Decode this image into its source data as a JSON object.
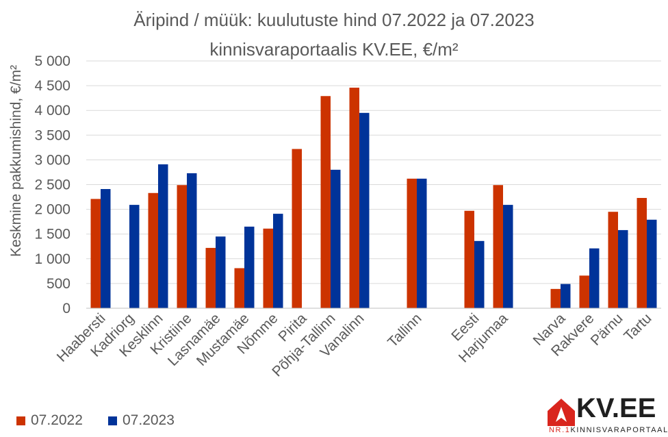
{
  "chart_data": {
    "type": "bar",
    "title": "Äripind / müük: kuulutuste hind 07.2022 ja 07.2023",
    "subtitle": "kinnisvaraportaalis KV.EE, €/m²",
    "ylabel": "Keskmine pakkumishind, €/m²",
    "xlabel": "",
    "ylim": [
      0,
      5000
    ],
    "yticks": [
      0,
      500,
      1000,
      1500,
      2000,
      2500,
      3000,
      3500,
      4000,
      4500,
      5000
    ],
    "ytick_labels": [
      "0",
      "500",
      "1 000",
      "1 500",
      "2 000",
      "2 500",
      "3 000",
      "3 500",
      "4 000",
      "4 500",
      "5 000"
    ],
    "grid": true,
    "legend_position": "bottom-left",
    "categories": [
      "Haabersti",
      "Kadriorg",
      "Kesklinn",
      "Kristiine",
      "Lasnamäe",
      "Mustamäe",
      "Nõmme",
      "Pirita",
      "Põhja-Tallinn",
      "Vanalinn",
      "",
      "Tallinn",
      "",
      "Eesti",
      "Harjumaa",
      "",
      "Narva",
      "Rakvere",
      "Pärnu",
      "Tartu"
    ],
    "series": [
      {
        "name": "07.2022",
        "color": "#cc3300",
        "values": [
          2210,
          null,
          2330,
          2490,
          1220,
          810,
          1610,
          3220,
          4290,
          4460,
          null,
          2620,
          null,
          1970,
          2490,
          null,
          390,
          660,
          1950,
          2230
        ]
      },
      {
        "name": "07.2023",
        "color": "#003399",
        "values": [
          2410,
          2090,
          2910,
          2730,
          1450,
          1650,
          1910,
          null,
          2800,
          3950,
          null,
          2620,
          null,
          1360,
          2090,
          null,
          490,
          1210,
          1580,
          1790
        ]
      }
    ]
  },
  "logo": {
    "text": "KV.EE",
    "tagline_nr": "NR.1",
    "tagline_rest": "KINNISVARAPORTAAL",
    "icon": "house-arrow-icon",
    "colors": {
      "red": "#d9251d",
      "dark": "#1f1f1f"
    }
  }
}
